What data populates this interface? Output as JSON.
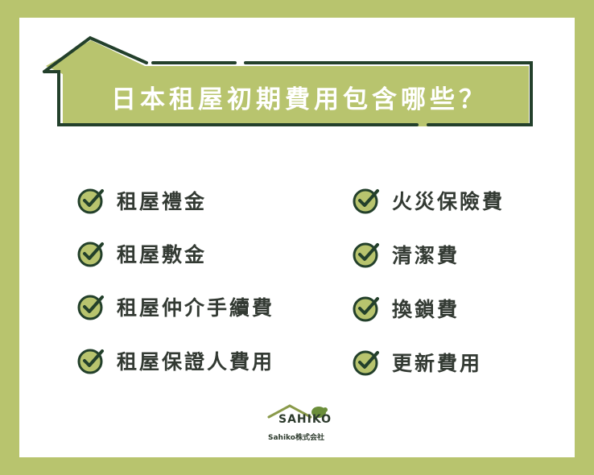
{
  "title": "日本租屋初期費用包含哪些？",
  "colors": {
    "frame": "#b8c46e",
    "banner": "#b8c46e",
    "outline": "#23402b",
    "text": "#333a33"
  },
  "left_items": [
    {
      "label": "租屋禮金",
      "icon": "check-circle-icon"
    },
    {
      "label": "租屋敷金",
      "icon": "check-circle-icon"
    },
    {
      "label": "租屋仲介手續費",
      "icon": "check-circle-icon"
    },
    {
      "label": "租屋保證人費用",
      "icon": "check-circle-icon"
    }
  ],
  "right_items": [
    {
      "label": "火災保險費",
      "icon": "check-circle-icon"
    },
    {
      "label": "清潔費",
      "icon": "check-circle-icon"
    },
    {
      "label": "換鎖費",
      "icon": "check-circle-icon"
    },
    {
      "label": "更新費用",
      "icon": "check-circle-icon"
    }
  ],
  "logo": {
    "word": "SAHIKO",
    "caption": "Sahiko株式会社"
  }
}
